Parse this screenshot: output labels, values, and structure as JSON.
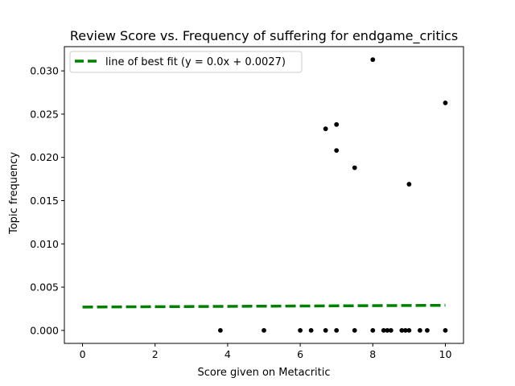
{
  "chart_data": {
    "type": "scatter",
    "title": "Review Score vs. Frequency of suffering for endgame_critics",
    "xlabel": "Score given on Metacritic",
    "ylabel": "Topic frequency",
    "xlim": [
      -0.5,
      10.5
    ],
    "ylim": [
      -0.0015,
      0.0328
    ],
    "xticks": [
      0,
      2,
      4,
      6,
      8,
      10
    ],
    "xtick_labels": [
      "0",
      "2",
      "4",
      "6",
      "8",
      "10"
    ],
    "yticks": [
      0.0,
      0.005,
      0.01,
      0.015,
      0.02,
      0.025,
      0.03
    ],
    "ytick_labels": [
      "0.000",
      "0.005",
      "0.010",
      "0.015",
      "0.020",
      "0.025",
      "0.030"
    ],
    "grid": false,
    "legend_position": "top-left",
    "series": [
      {
        "kind": "scatter",
        "color": "#000000",
        "points": [
          [
            3.8,
            0.0
          ],
          [
            5.0,
            0.0
          ],
          [
            6.0,
            0.0
          ],
          [
            6.3,
            0.0
          ],
          [
            6.7,
            0.0
          ],
          [
            7.0,
            0.0
          ],
          [
            7.5,
            0.0
          ],
          [
            8.0,
            0.0
          ],
          [
            8.3,
            0.0
          ],
          [
            8.4,
            0.0
          ],
          [
            8.5,
            0.0
          ],
          [
            8.8,
            0.0
          ],
          [
            8.9,
            0.0
          ],
          [
            9.0,
            0.0
          ],
          [
            9.3,
            0.0
          ],
          [
            9.5,
            0.0
          ],
          [
            10.0,
            0.0
          ],
          [
            6.7,
            0.0233
          ],
          [
            7.0,
            0.0238
          ],
          [
            7.0,
            0.0208
          ],
          [
            7.5,
            0.0188
          ],
          [
            8.0,
            0.0313
          ],
          [
            9.0,
            0.0169
          ],
          [
            10.0,
            0.0263
          ]
        ]
      },
      {
        "kind": "line",
        "name": "line of best fit (y = 0.0x + 0.0027)",
        "color": "#008000",
        "style": "dashed",
        "x": [
          0,
          10
        ],
        "y": [
          0.0027,
          0.0029
        ]
      }
    ]
  }
}
